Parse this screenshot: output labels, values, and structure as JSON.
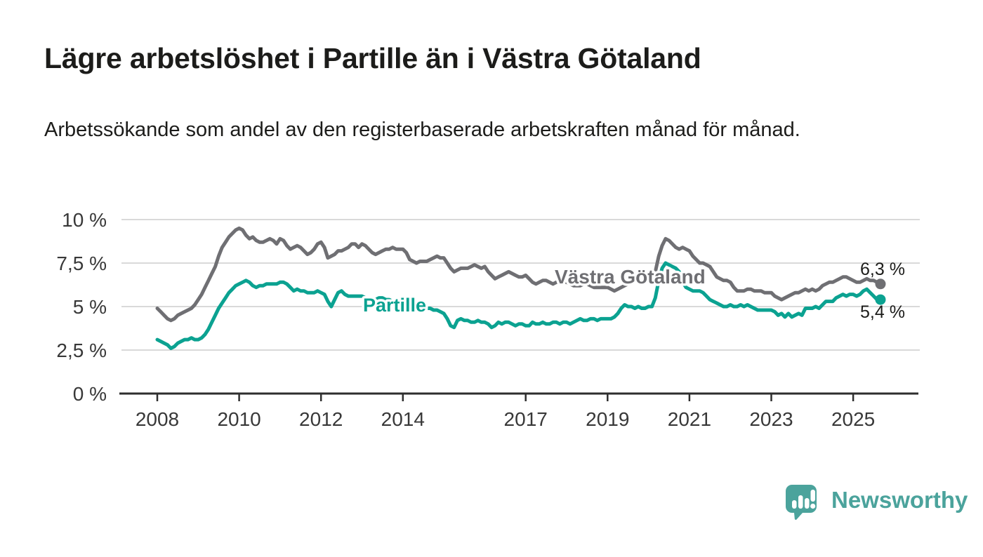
{
  "chart_data": {
    "type": "line",
    "title": "Lägre arbetslöshet i Partille än i Västra Götaland",
    "subtitle": "Arbetssökande som andel av den registerbaserade arbetskraften månad för månad.",
    "x_unit": "month",
    "x_start": "2008-01",
    "x_end": "2025-09",
    "x_tick_years": [
      2008,
      2010,
      2012,
      2014,
      2017,
      2019,
      2021,
      2023,
      2025
    ],
    "y_ticks": [
      "0 %",
      "2,5 %",
      "5 %",
      "7,5 %",
      "10 %"
    ],
    "y_tick_values": [
      0,
      2.5,
      5,
      7.5,
      10
    ],
    "ylim": [
      0,
      10
    ],
    "grid": "horizontal",
    "legend_position": "inline-labels",
    "axis_color": "#2e2e2e",
    "grid_color": "#d9d9d9",
    "tick_label_color": "#383838",
    "value_label_color": "#1c1c1a",
    "series": [
      {
        "name": "Västra Götaland",
        "color": "#6f6f73",
        "last_value": 6.3,
        "end_label": "6,3 %",
        "values": [
          4.9,
          4.7,
          4.5,
          4.3,
          4.2,
          4.3,
          4.5,
          4.6,
          4.7,
          4.8,
          4.9,
          5.1,
          5.4,
          5.7,
          6.1,
          6.5,
          6.9,
          7.3,
          7.9,
          8.4,
          8.7,
          9.0,
          9.2,
          9.4,
          9.5,
          9.4,
          9.1,
          8.9,
          9.0,
          8.8,
          8.7,
          8.7,
          8.8,
          8.9,
          8.8,
          8.6,
          8.9,
          8.8,
          8.5,
          8.3,
          8.4,
          8.5,
          8.4,
          8.2,
          8.0,
          8.1,
          8.3,
          8.6,
          8.7,
          8.4,
          7.8,
          7.9,
          8.0,
          8.2,
          8.2,
          8.3,
          8.4,
          8.6,
          8.6,
          8.4,
          8.6,
          8.5,
          8.3,
          8.1,
          8.0,
          8.1,
          8.2,
          8.3,
          8.3,
          8.4,
          8.3,
          8.3,
          8.3,
          8.1,
          7.7,
          7.6,
          7.5,
          7.6,
          7.6,
          7.6,
          7.7,
          7.8,
          7.9,
          7.8,
          7.8,
          7.5,
          7.2,
          7.0,
          7.1,
          7.2,
          7.2,
          7.2,
          7.3,
          7.4,
          7.3,
          7.2,
          7.3,
          7.0,
          6.8,
          6.6,
          6.7,
          6.8,
          6.9,
          7.0,
          6.9,
          6.8,
          6.7,
          6.7,
          6.8,
          6.6,
          6.4,
          6.3,
          6.4,
          6.5,
          6.5,
          6.4,
          6.3,
          6.4,
          6.4,
          6.4,
          6.4,
          6.3,
          6.2,
          6.2,
          6.2,
          6.3,
          6.3,
          6.2,
          6.1,
          6.1,
          6.1,
          6.1,
          6.1,
          6.0,
          5.9,
          6.0,
          6.1,
          6.2,
          6.3,
          6.4,
          6.5,
          6.5,
          6.4,
          6.5,
          6.6,
          6.6,
          7.0,
          7.9,
          8.5,
          8.9,
          8.8,
          8.6,
          8.4,
          8.3,
          8.4,
          8.3,
          8.2,
          7.9,
          7.7,
          7.5,
          7.5,
          7.4,
          7.3,
          7.0,
          6.7,
          6.6,
          6.5,
          6.5,
          6.4,
          6.1,
          5.9,
          5.9,
          5.9,
          6.0,
          6.0,
          5.9,
          5.9,
          5.9,
          5.8,
          5.8,
          5.8,
          5.6,
          5.5,
          5.4,
          5.5,
          5.6,
          5.7,
          5.8,
          5.8,
          5.9,
          6.0,
          5.9,
          6.0,
          5.9,
          6.0,
          6.2,
          6.3,
          6.4,
          6.4,
          6.5,
          6.6,
          6.7,
          6.7,
          6.6,
          6.5,
          6.4,
          6.4,
          6.5,
          6.6,
          6.5,
          6.5,
          6.4,
          6.3
        ]
      },
      {
        "name": "Partille",
        "color": "#0ba291",
        "last_value": 5.4,
        "end_label": "5,4 %",
        "values": [
          3.1,
          3.0,
          2.9,
          2.8,
          2.6,
          2.7,
          2.9,
          3.0,
          3.1,
          3.1,
          3.2,
          3.1,
          3.1,
          3.2,
          3.4,
          3.7,
          4.1,
          4.5,
          4.9,
          5.2,
          5.5,
          5.8,
          6.0,
          6.2,
          6.3,
          6.4,
          6.5,
          6.4,
          6.2,
          6.1,
          6.2,
          6.2,
          6.3,
          6.3,
          6.3,
          6.3,
          6.4,
          6.4,
          6.3,
          6.1,
          5.9,
          6.0,
          5.9,
          5.9,
          5.8,
          5.8,
          5.8,
          5.9,
          5.8,
          5.7,
          5.3,
          5.0,
          5.4,
          5.8,
          5.9,
          5.7,
          5.6,
          5.6,
          5.6,
          5.6,
          5.6,
          5.5,
          5.5,
          5.4,
          5.4,
          5.5,
          5.5,
          5.4,
          5.4,
          5.3,
          5.3,
          5.2,
          5.2,
          5.1,
          5.0,
          5.0,
          4.9,
          5.0,
          5.0,
          4.9,
          4.9,
          4.8,
          4.8,
          4.7,
          4.6,
          4.3,
          3.9,
          3.8,
          4.2,
          4.3,
          4.2,
          4.2,
          4.1,
          4.1,
          4.2,
          4.1,
          4.1,
          4.0,
          3.8,
          3.9,
          4.1,
          4.0,
          4.1,
          4.1,
          4.0,
          3.9,
          4.0,
          4.0,
          3.9,
          3.9,
          4.1,
          4.0,
          4.0,
          4.1,
          4.0,
          4.0,
          4.1,
          4.1,
          4.0,
          4.1,
          4.1,
          4.0,
          4.1,
          4.2,
          4.3,
          4.2,
          4.2,
          4.3,
          4.3,
          4.2,
          4.3,
          4.3,
          4.3,
          4.3,
          4.4,
          4.6,
          4.9,
          5.1,
          5.0,
          5.0,
          4.9,
          5.0,
          4.9,
          4.9,
          5.0,
          5.0,
          5.5,
          6.5,
          7.2,
          7.5,
          7.4,
          7.3,
          7.2,
          7.0,
          6.4,
          6.1,
          6.0,
          5.9,
          5.9,
          5.9,
          5.8,
          5.6,
          5.4,
          5.3,
          5.2,
          5.1,
          5.0,
          5.0,
          5.1,
          5.0,
          5.0,
          5.1,
          5.0,
          5.1,
          5.0,
          4.9,
          4.8,
          4.8,
          4.8,
          4.8,
          4.8,
          4.7,
          4.5,
          4.6,
          4.4,
          4.6,
          4.4,
          4.5,
          4.6,
          4.5,
          4.9,
          4.9,
          4.9,
          5.0,
          4.9,
          5.1,
          5.3,
          5.3,
          5.3,
          5.5,
          5.6,
          5.7,
          5.6,
          5.7,
          5.7,
          5.6,
          5.7,
          5.9,
          6.0,
          5.8,
          5.6,
          5.4,
          5.4
        ]
      }
    ]
  },
  "branding": {
    "name": "Newsworthy",
    "color": "#4ba39c",
    "icon": "speech-bubble-bar-chart-icon"
  }
}
